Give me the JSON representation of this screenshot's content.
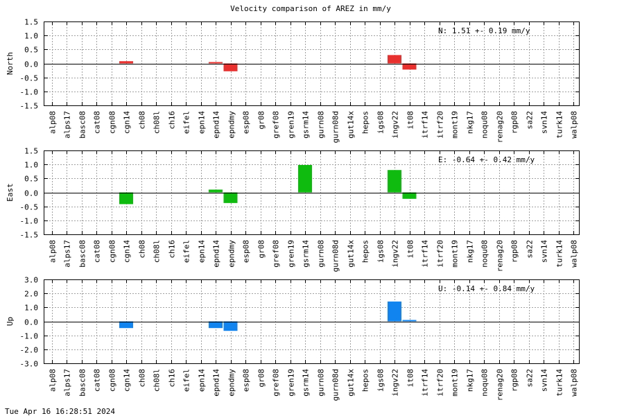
{
  "title": "Velocity comparison of AREZ in mm/y",
  "timestamp": "Tue Apr 16 16:28:51 2024",
  "chart_data": [
    {
      "type": "bar",
      "ylabel": "North",
      "color": "#e8302f",
      "annotation": "N:   1.51 +-  0.19 mm/y",
      "ylim": [
        -1.5,
        1.5
      ],
      "yticks": [
        -1.5,
        -1.0,
        -0.5,
        0.0,
        0.5,
        1.0,
        1.5
      ],
      "ytick_labels": [
        "-1.5",
        "-1.0",
        "-0.5",
        "0.0",
        "0.5",
        "1.0",
        "1.5"
      ],
      "grid": true,
      "categories": [
        "alp08",
        "alps17",
        "basc08",
        "cat08",
        "cgn08",
        "cgn14",
        "ch08",
        "ch08l",
        "ch16",
        "eifel",
        "epn14",
        "epnd14",
        "epndmy",
        "esp08",
        "gr08",
        "gref08",
        "gren19",
        "gsrm14",
        "gurn08",
        "gurn08d",
        "gut14x",
        "hepos",
        "igs08",
        "ingv22",
        "it08",
        "itrf14",
        "itrf20",
        "mont19",
        "nkg17",
        "noqu08",
        "renag20",
        "rgp08",
        "sa22",
        "svn14",
        "turk14",
        "walp08"
      ],
      "values": [
        null,
        null,
        null,
        null,
        null,
        0.08,
        null,
        null,
        null,
        null,
        null,
        0.05,
        -0.28,
        null,
        null,
        null,
        null,
        null,
        null,
        null,
        null,
        null,
        null,
        0.3,
        -0.22,
        null,
        null,
        null,
        null,
        null,
        null,
        null,
        null,
        null,
        null,
        null
      ]
    },
    {
      "type": "bar",
      "ylabel": "East",
      "color": "#10bb10",
      "annotation": "E:  -0.64 +-  0.42 mm/y",
      "ylim": [
        -1.5,
        1.5
      ],
      "yticks": [
        -1.5,
        -1.0,
        -0.5,
        0.0,
        0.5,
        1.0,
        1.5
      ],
      "ytick_labels": [
        "-1.5",
        "-1.0",
        "-0.5",
        "0.0",
        "0.5",
        "1.0",
        "1.5"
      ],
      "grid": true,
      "categories": [
        "alp08",
        "alps17",
        "basc08",
        "cat08",
        "cgn08",
        "cgn14",
        "ch08",
        "ch08l",
        "ch16",
        "eifel",
        "epn14",
        "epnd14",
        "epndmy",
        "esp08",
        "gr08",
        "gref08",
        "gren19",
        "gsrm14",
        "gurn08",
        "gurn08d",
        "gut14x",
        "hepos",
        "igs08",
        "ingv22",
        "it08",
        "itrf14",
        "itrf20",
        "mont19",
        "nkg17",
        "noqu08",
        "renag20",
        "rgp08",
        "sa22",
        "svn14",
        "turk14",
        "walp08"
      ],
      "values": [
        null,
        null,
        null,
        null,
        null,
        -0.42,
        null,
        null,
        null,
        null,
        null,
        0.1,
        -0.38,
        null,
        null,
        null,
        null,
        0.98,
        null,
        null,
        null,
        null,
        null,
        0.8,
        -0.23,
        null,
        null,
        null,
        null,
        null,
        null,
        null,
        null,
        null,
        null,
        null
      ]
    },
    {
      "type": "bar",
      "ylabel": "Up",
      "color": "#1284f0",
      "annotation": "U:  -0.14 +-  0.84 mm/y",
      "ylim": [
        -3.0,
        3.0
      ],
      "yticks": [
        -3.0,
        -2.0,
        -1.0,
        0.0,
        1.0,
        2.0,
        3.0
      ],
      "ytick_labels": [
        "-3.0",
        "-2.0",
        "-1.0",
        "0.0",
        "1.0",
        "2.0",
        "3.0"
      ],
      "grid": true,
      "categories": [
        "alp08",
        "alps17",
        "basc08",
        "cat08",
        "cgn08",
        "cgn14",
        "ch08",
        "ch08l",
        "ch16",
        "eifel",
        "epn14",
        "epnd14",
        "epndmy",
        "esp08",
        "gr08",
        "gref08",
        "gren19",
        "gsrm14",
        "gurn08",
        "gurn08d",
        "gut14x",
        "hepos",
        "igs08",
        "ingv22",
        "it08",
        "itrf14",
        "itrf20",
        "mont19",
        "nkg17",
        "noqu08",
        "renag20",
        "rgp08",
        "sa22",
        "svn14",
        "turk14",
        "walp08"
      ],
      "values": [
        null,
        null,
        null,
        null,
        null,
        -0.48,
        null,
        null,
        null,
        null,
        null,
        -0.48,
        -0.68,
        null,
        null,
        null,
        null,
        null,
        null,
        null,
        null,
        null,
        null,
        1.42,
        0.1,
        null,
        null,
        null,
        null,
        null,
        null,
        null,
        null,
        null,
        null,
        null
      ]
    }
  ]
}
